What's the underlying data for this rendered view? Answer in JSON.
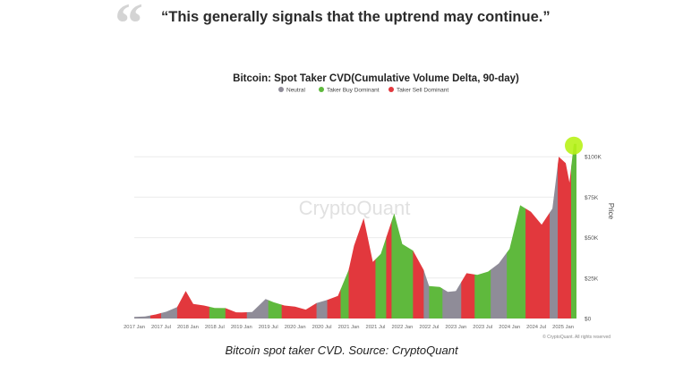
{
  "quote": {
    "mark": "“",
    "text": "“This generally signals that the uptrend may continue.”"
  },
  "caption": "Bitcoin spot taker CVD. Source: CryptoQuant",
  "chart_data": {
    "type": "area",
    "title": "Bitcoin: Spot Taker CVD(Cumulative Volume Delta, 90-day)",
    "watermark": "CryptoQuant",
    "copyright": "© CryptoQuant. All rights reserved",
    "ylabel": "Price",
    "ylim": [
      0,
      125000
    ],
    "y_ticks": [
      {
        "value": 0,
        "label": "$0"
      },
      {
        "value": 25000,
        "label": "$25K"
      },
      {
        "value": 50000,
        "label": "$50K"
      },
      {
        "value": 75000,
        "label": "$75K"
      },
      {
        "value": 100000,
        "label": "$100K"
      }
    ],
    "x_ticks": [
      "2017 Jan",
      "2017 Jul",
      "2018 Jan",
      "2018 Jul",
      "2019 Jan",
      "2019 Jul",
      "2020 Jan",
      "2020 Jul",
      "2021 Jan",
      "2021 Jul",
      "2022 Jan",
      "2022 Jul",
      "2023 Jan",
      "2023 Jul",
      "2024 Jan",
      "2024 Jul",
      "2025 Jan"
    ],
    "x_range": [
      2017.0,
      2025.25
    ],
    "legend": [
      {
        "name": "Neutral",
        "color": "#8f8c98"
      },
      {
        "name": "Taker Buy Dominant",
        "color": "#5fb93d"
      },
      {
        "name": "Taker Sell Dominant",
        "color": "#e2383d"
      }
    ],
    "highlight": {
      "x": 2025.2,
      "y": 108000,
      "color": "#b8f218"
    },
    "price": [
      [
        2017.0,
        1000
      ],
      [
        2017.2,
        1200
      ],
      [
        2017.4,
        2500
      ],
      [
        2017.6,
        4200
      ],
      [
        2017.8,
        7000
      ],
      [
        2017.96,
        17000
      ],
      [
        2018.1,
        9000
      ],
      [
        2018.3,
        8000
      ],
      [
        2018.5,
        6500
      ],
      [
        2018.7,
        6400
      ],
      [
        2018.9,
        3800
      ],
      [
        2019.0,
        3700
      ],
      [
        2019.2,
        4000
      ],
      [
        2019.45,
        12000
      ],
      [
        2019.6,
        10000
      ],
      [
        2019.8,
        8000
      ],
      [
        2020.0,
        7300
      ],
      [
        2020.2,
        5500
      ],
      [
        2020.4,
        9500
      ],
      [
        2020.6,
        11500
      ],
      [
        2020.8,
        14000
      ],
      [
        2021.0,
        30000
      ],
      [
        2021.1,
        45000
      ],
      [
        2021.28,
        62000
      ],
      [
        2021.45,
        35000
      ],
      [
        2021.6,
        40000
      ],
      [
        2021.85,
        65000
      ],
      [
        2022.0,
        46000
      ],
      [
        2022.2,
        42000
      ],
      [
        2022.4,
        30000
      ],
      [
        2022.5,
        20000
      ],
      [
        2022.7,
        19500
      ],
      [
        2022.85,
        16500
      ],
      [
        2023.0,
        17000
      ],
      [
        2023.2,
        28000
      ],
      [
        2023.4,
        27000
      ],
      [
        2023.6,
        29000
      ],
      [
        2023.8,
        34000
      ],
      [
        2024.0,
        43000
      ],
      [
        2024.2,
        70000
      ],
      [
        2024.4,
        66000
      ],
      [
        2024.6,
        58000
      ],
      [
        2024.8,
        68000
      ],
      [
        2024.92,
        100000
      ],
      [
        2025.05,
        96000
      ],
      [
        2025.12,
        84000
      ],
      [
        2025.2,
        108000
      ],
      [
        2025.25,
        108000
      ]
    ],
    "regimes": [
      {
        "from": 2017.0,
        "to": 2017.3,
        "state": "Neutral"
      },
      {
        "from": 2017.3,
        "to": 2017.5,
        "state": "Taker Sell Dominant"
      },
      {
        "from": 2017.5,
        "to": 2017.8,
        "state": "Neutral"
      },
      {
        "from": 2017.8,
        "to": 2018.4,
        "state": "Taker Sell Dominant"
      },
      {
        "from": 2018.4,
        "to": 2018.7,
        "state": "Taker Buy Dominant"
      },
      {
        "from": 2018.7,
        "to": 2019.1,
        "state": "Taker Sell Dominant"
      },
      {
        "from": 2019.1,
        "to": 2019.5,
        "state": "Neutral"
      },
      {
        "from": 2019.5,
        "to": 2019.75,
        "state": "Taker Buy Dominant"
      },
      {
        "from": 2019.75,
        "to": 2020.4,
        "state": "Taker Sell Dominant"
      },
      {
        "from": 2020.4,
        "to": 2020.6,
        "state": "Neutral"
      },
      {
        "from": 2020.6,
        "to": 2020.85,
        "state": "Taker Sell Dominant"
      },
      {
        "from": 2020.85,
        "to": 2021.0,
        "state": "Taker Buy Dominant"
      },
      {
        "from": 2021.0,
        "to": 2021.5,
        "state": "Taker Sell Dominant"
      },
      {
        "from": 2021.5,
        "to": 2021.7,
        "state": "Taker Buy Dominant"
      },
      {
        "from": 2021.7,
        "to": 2021.8,
        "state": "Taker Sell Dominant"
      },
      {
        "from": 2021.8,
        "to": 2022.2,
        "state": "Taker Buy Dominant"
      },
      {
        "from": 2022.2,
        "to": 2022.4,
        "state": "Taker Sell Dominant"
      },
      {
        "from": 2022.4,
        "to": 2022.5,
        "state": "Neutral"
      },
      {
        "from": 2022.5,
        "to": 2022.75,
        "state": "Taker Buy Dominant"
      },
      {
        "from": 2022.75,
        "to": 2023.1,
        "state": "Neutral"
      },
      {
        "from": 2023.1,
        "to": 2023.35,
        "state": "Taker Sell Dominant"
      },
      {
        "from": 2023.35,
        "to": 2023.65,
        "state": "Taker Buy Dominant"
      },
      {
        "from": 2023.65,
        "to": 2023.95,
        "state": "Neutral"
      },
      {
        "from": 2023.95,
        "to": 2024.3,
        "state": "Taker Buy Dominant"
      },
      {
        "from": 2024.3,
        "to": 2024.75,
        "state": "Taker Sell Dominant"
      },
      {
        "from": 2024.75,
        "to": 2024.9,
        "state": "Neutral"
      },
      {
        "from": 2024.9,
        "to": 2025.15,
        "state": "Taker Sell Dominant"
      },
      {
        "from": 2025.15,
        "to": 2025.25,
        "state": "Taker Buy Dominant"
      }
    ]
  }
}
